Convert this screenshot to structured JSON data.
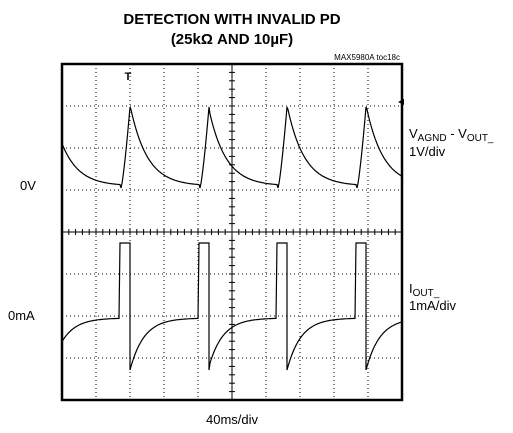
{
  "header": {
    "title": "DETECTION WITH INVALID PD",
    "subtitle": "(25kΩ AND 10µF)",
    "figure_id": "MAX5980A toc18c"
  },
  "scope": {
    "trigger_marker": "T",
    "channel_1": {
      "zero_label": "0V",
      "name_main": "V",
      "name_sub1": "AGND",
      "name_mid": " - V",
      "name_sub2": "OUT_",
      "scale": "1V/div"
    },
    "channel_2": {
      "zero_label": "0mA",
      "name_main": "I",
      "name_sub": "OUT_",
      "scale": "1mA/div"
    },
    "timebase": "40ms/div"
  }
}
